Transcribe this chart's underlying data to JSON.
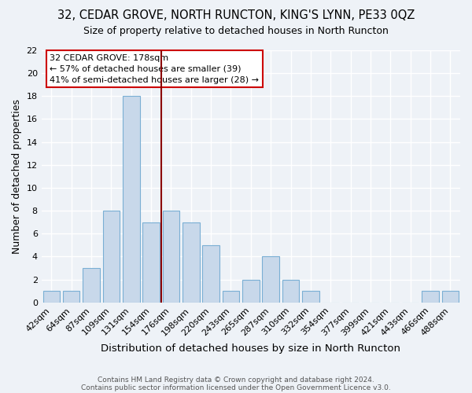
{
  "title": "32, CEDAR GROVE, NORTH RUNCTON, KING'S LYNN, PE33 0QZ",
  "subtitle": "Size of property relative to detached houses in North Runcton",
  "xlabel": "Distribution of detached houses by size in North Runcton",
  "ylabel": "Number of detached properties",
  "bar_color": "#c8d8ea",
  "bar_edge_color": "#7aafd4",
  "categories": [
    "42sqm",
    "64sqm",
    "87sqm",
    "109sqm",
    "131sqm",
    "154sqm",
    "176sqm",
    "198sqm",
    "220sqm",
    "243sqm",
    "265sqm",
    "287sqm",
    "310sqm",
    "332sqm",
    "354sqm",
    "377sqm",
    "399sqm",
    "421sqm",
    "443sqm",
    "466sqm",
    "488sqm"
  ],
  "values": [
    1,
    1,
    3,
    8,
    18,
    7,
    8,
    7,
    5,
    1,
    2,
    4,
    2,
    1,
    0,
    0,
    0,
    0,
    0,
    1,
    1
  ],
  "ylim": [
    0,
    22
  ],
  "yticks": [
    0,
    2,
    4,
    6,
    8,
    10,
    12,
    14,
    16,
    18,
    20,
    22
  ],
  "annotation_line1": "32 CEDAR GROVE: 178sqm",
  "annotation_line2": "← 57% of detached houses are smaller (39)",
  "annotation_line3": "41% of semi-detached houses are larger (28) →",
  "marker_line_color": "#8b0000",
  "background_color": "#eef2f7",
  "grid_color": "#ffffff",
  "footer_line1": "Contains HM Land Registry data © Crown copyright and database right 2024.",
  "footer_line2": "Contains public sector information licensed under the Open Government Licence v3.0."
}
